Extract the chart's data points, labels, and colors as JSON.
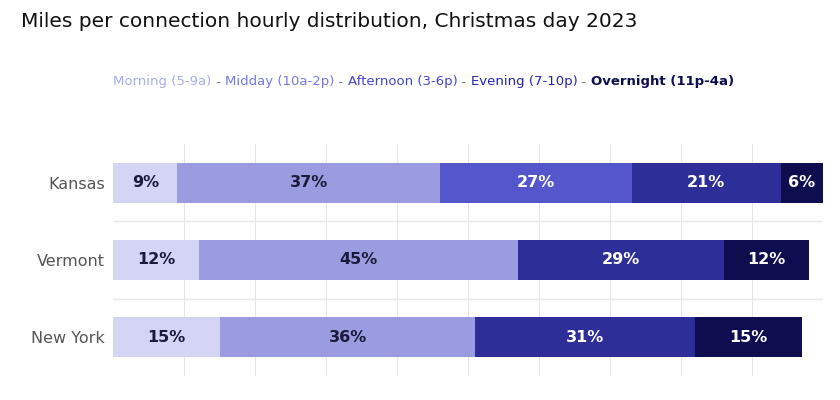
{
  "title": "Miles per connection hourly distribution, Christmas day 2023",
  "regions": [
    "New York",
    "Vermont",
    "Kansas"
  ],
  "segments": [
    "Morning (5-9a)",
    "Midday (10a-2p)",
    "Afternoon (3-6p)",
    "Evening (7-10p)",
    "Overnight (11p-4a)"
  ],
  "bar_colors": [
    "#d4d4f5",
    "#9b9be0",
    "#5555cc",
    "#2e2e99",
    "#0d0d50"
  ],
  "legend_colors": [
    "#aaaaee",
    "#7777dd",
    "#4444cc",
    "#2222aa",
    "#0d0d50"
  ],
  "legend_weights": [
    "normal",
    "normal",
    "normal",
    "normal",
    "bold"
  ],
  "values": [
    [
      9,
      37,
      27,
      21,
      6
    ],
    [
      12,
      45,
      0,
      29,
      12
    ],
    [
      15,
      36,
      0,
      31,
      15
    ]
  ],
  "background": "#ffffff",
  "bar_height": 0.52,
  "label_fontsize": 11.5,
  "title_fontsize": 14.5,
  "legend_fontsize": 9.5,
  "sep_color": "#777777",
  "dark_text_segs": [
    0,
    1
  ],
  "dark_text_color": "#1a1a3a",
  "light_text_color": "#ffffff",
  "ytick_color": "#555555",
  "ytick_fontsize": 11.5,
  "grid_color": "#e0e0e0",
  "sep_line_color": "#e8e8e8"
}
